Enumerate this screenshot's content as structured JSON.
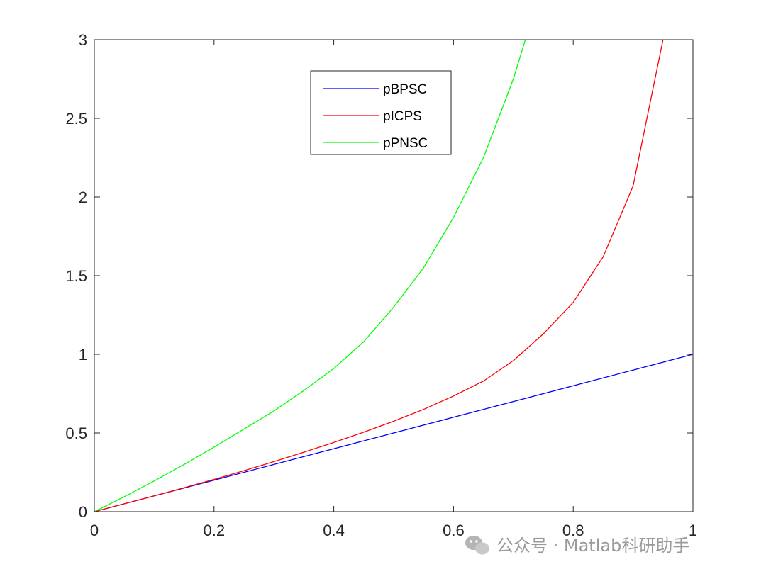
{
  "chart_data": {
    "type": "line",
    "title": "",
    "xlabel": "",
    "ylabel": "",
    "xlim": [
      0,
      1
    ],
    "ylim": [
      0,
      3
    ],
    "grid": false,
    "legend_position": "top-center",
    "xticks": [
      0,
      0.2,
      0.4,
      0.6,
      0.8,
      1
    ],
    "xtick_labels": [
      "0",
      "0.2",
      "0.4",
      "0.6",
      "0.8",
      "1"
    ],
    "yticks": [
      0,
      0.5,
      1,
      1.5,
      2,
      2.5,
      3
    ],
    "ytick_labels": [
      "0",
      "0.5",
      "1",
      "1.5",
      "2",
      "2.5",
      "3"
    ],
    "series": [
      {
        "name": "pBPSC",
        "color": "#0000ff",
        "x": [
          0,
          0.1,
          0.2,
          0.3,
          0.4,
          0.5,
          0.6,
          0.7,
          0.8,
          0.9,
          1.0
        ],
        "y": [
          0,
          0.1,
          0.2,
          0.3,
          0.4,
          0.5,
          0.6,
          0.7,
          0.8,
          0.9,
          1.0
        ]
      },
      {
        "name": "pICPS",
        "color": "#ff0000",
        "x": [
          0,
          0.05,
          0.1,
          0.15,
          0.2,
          0.25,
          0.3,
          0.35,
          0.4,
          0.45,
          0.5,
          0.55,
          0.6,
          0.65,
          0.7,
          0.75,
          0.8,
          0.85,
          0.9,
          0.95
        ],
        "y": [
          0,
          0.05,
          0.1,
          0.152,
          0.205,
          0.26,
          0.318,
          0.378,
          0.44,
          0.505,
          0.575,
          0.65,
          0.735,
          0.83,
          0.96,
          1.13,
          1.33,
          1.62,
          2.07,
          3.0
        ]
      },
      {
        "name": "pPNSC",
        "color": "#00ff00",
        "x": [
          0,
          0.05,
          0.1,
          0.15,
          0.2,
          0.25,
          0.3,
          0.35,
          0.4,
          0.45,
          0.5,
          0.55,
          0.6,
          0.65,
          0.7,
          0.72
        ],
        "y": [
          0,
          0.095,
          0.195,
          0.3,
          0.41,
          0.525,
          0.64,
          0.77,
          0.91,
          1.08,
          1.3,
          1.55,
          1.87,
          2.25,
          2.75,
          3.0
        ]
      }
    ]
  },
  "watermark": {
    "text": "公众号 · Matlab科研助手",
    "icon": "wechat-icon"
  }
}
